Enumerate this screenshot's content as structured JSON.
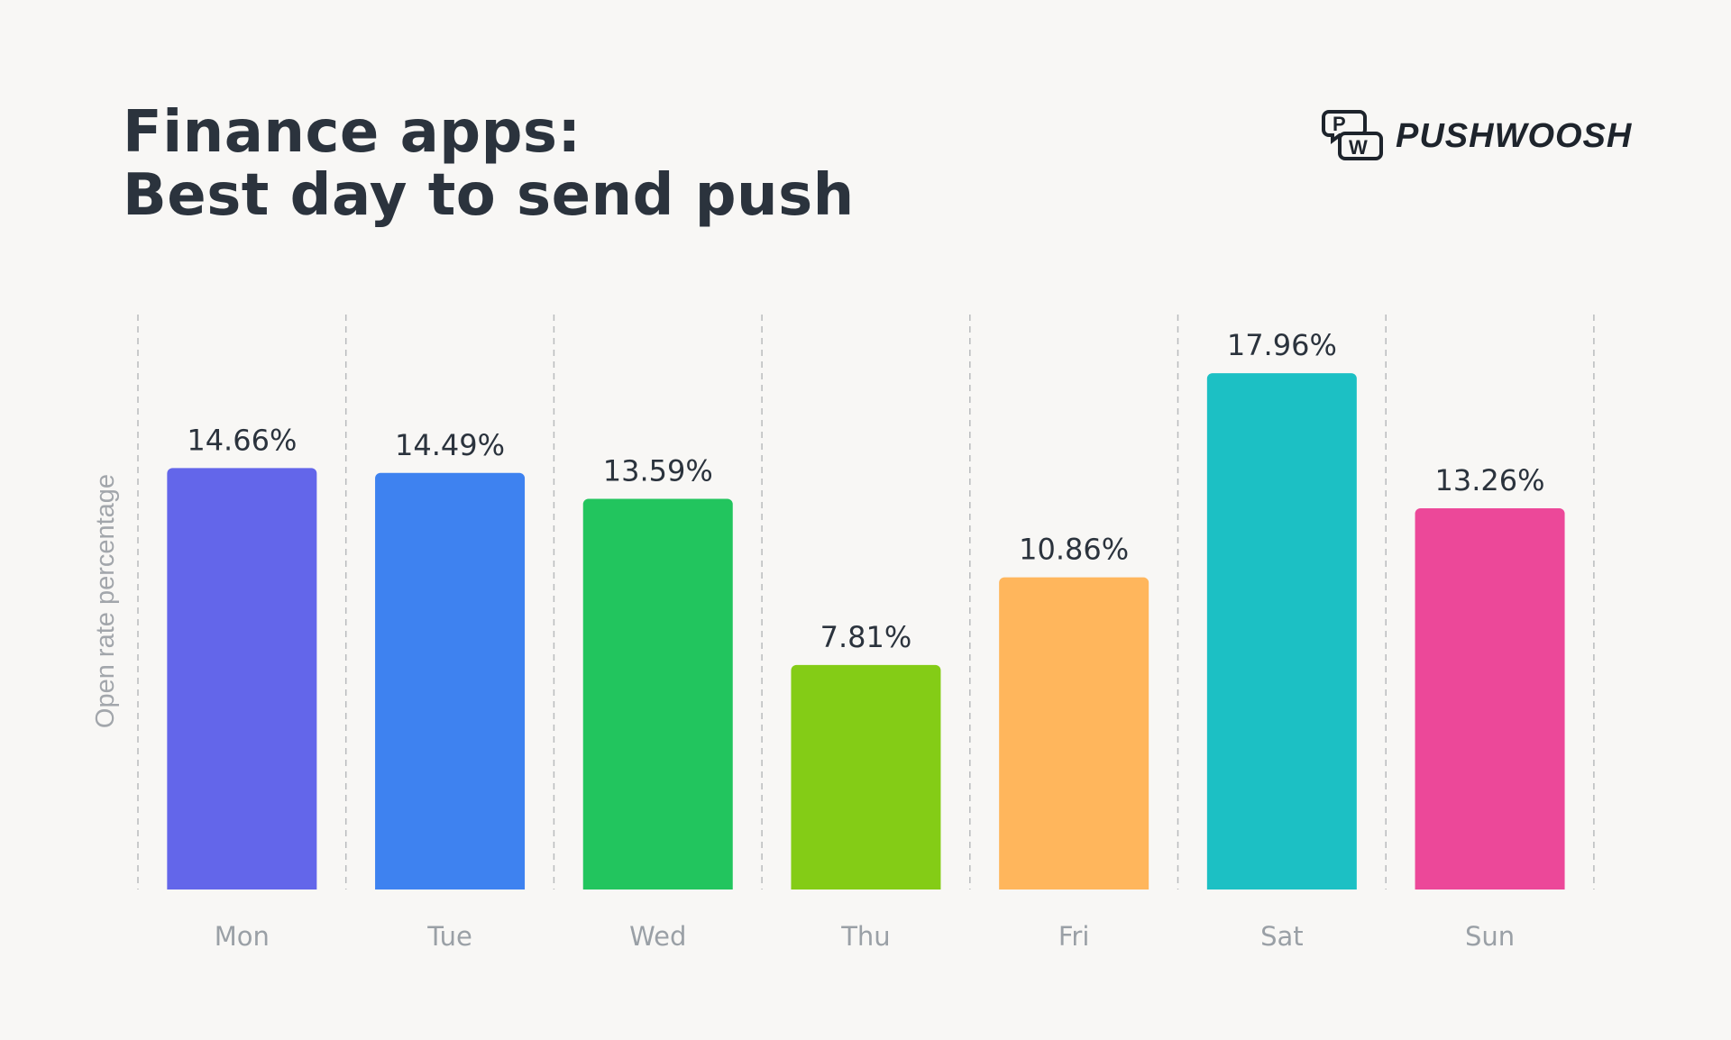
{
  "title": {
    "line1": "Finance apps:",
    "line2": "Best day to send push"
  },
  "logo": {
    "text": "PUSHWOOSH",
    "mark": "PW"
  },
  "chart_data": {
    "type": "bar",
    "title": "Finance apps: Best day to send push",
    "xlabel": "",
    "ylabel": "Open rate percentage",
    "ylim": [
      0,
      20
    ],
    "grid": "vertical dashed separators",
    "categories": [
      "Mon",
      "Tue",
      "Wed",
      "Thu",
      "Fri",
      "Sat",
      "Sun"
    ],
    "values": [
      14.66,
      14.49,
      13.59,
      7.81,
      10.86,
      17.96,
      13.26
    ],
    "data_labels": [
      "14.66%",
      "14.49%",
      "13.59%",
      "7.81%",
      "10.86%",
      "17.96%",
      "13.26%"
    ],
    "colors": [
      "#6366ea",
      "#3e82f0",
      "#22c55e",
      "#84cc16",
      "#ffb65c",
      "#1cc0c4",
      "#ec4899"
    ]
  }
}
